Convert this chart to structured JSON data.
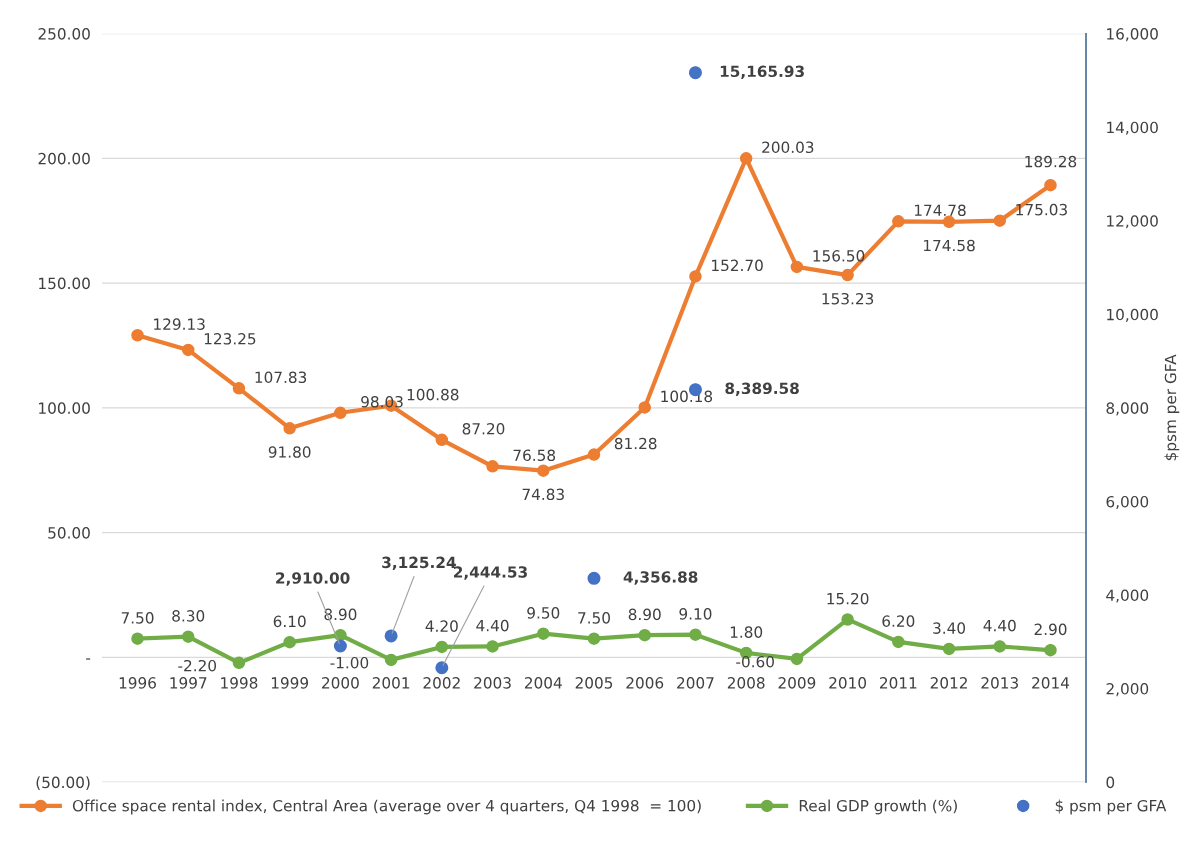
{
  "chart_data": {
    "type": "line",
    "categories": [
      "1996",
      "1997",
      "1998",
      "1999",
      "2000",
      "2001",
      "2002",
      "2003",
      "2004",
      "2005",
      "2006",
      "2007",
      "2008",
      "2009",
      "2010",
      "2011",
      "2012",
      "2013",
      "2014"
    ],
    "series": [
      {
        "name": "Office space rental index, Central Area (average over 4 quarters, Q4 1998  = 100)",
        "color": "#ed7d31",
        "values": [
          129.13,
          123.25,
          107.83,
          91.8,
          98.03,
          100.88,
          87.2,
          76.58,
          74.83,
          81.28,
          100.18,
          152.7,
          200.03,
          156.5,
          153.23,
          174.78,
          174.58,
          175.03,
          189.28
        ],
        "value_labels": [
          "129.13",
          "123.25",
          "107.83",
          "91.80",
          "98.03",
          "100.88",
          "87.20",
          "76.58",
          "74.83",
          "81.28",
          "100.18",
          "152.70",
          "200.03",
          "156.50",
          "153.23",
          "174.78",
          "174.58",
          "175.03",
          "189.28"
        ]
      },
      {
        "name": "Real GDP growth (%)",
        "color": "#70ad47",
        "values": [
          7.5,
          8.3,
          -2.2,
          6.1,
          8.9,
          -1.0,
          4.2,
          4.4,
          9.5,
          7.5,
          8.9,
          9.1,
          1.8,
          -0.6,
          15.2,
          6.2,
          3.4,
          4.4,
          2.9
        ],
        "value_labels": [
          "7.50",
          "8.30",
          "-2.20",
          "6.10",
          "8.90",
          "-1.00",
          "4.20",
          "4.40",
          "9.50",
          "7.50",
          "8.90",
          "9.10",
          "1.80",
          "-0.60",
          "15.20",
          "6.20",
          "3.40",
          "4.40",
          "2.90"
        ]
      },
      {
        "name": "$ psm per GFA",
        "type": "scatter",
        "axis": "y2",
        "color": "#4472c4",
        "values": [
          null,
          null,
          null,
          null,
          2910.0,
          3125.24,
          2444.53,
          null,
          null,
          4356.88,
          null,
          15165.93,
          null,
          null,
          null,
          null,
          null,
          null,
          null
        ],
        "value_labels": [
          null,
          null,
          null,
          null,
          "2,910.00",
          "3,125.24",
          "2,444.53",
          null,
          null,
          "4,356.88",
          null,
          "15,165.93",
          null,
          null,
          null,
          null,
          null,
          null,
          null
        ]
      },
      {
        "type": "scatter",
        "axis": "y2",
        "color": "#4472c4",
        "values": [
          null,
          null,
          null,
          null,
          null,
          null,
          null,
          null,
          null,
          null,
          null,
          8389.58,
          null,
          null,
          null,
          null,
          null,
          null,
          null
        ],
        "value_labels": [
          null,
          null,
          null,
          null,
          null,
          null,
          null,
          null,
          null,
          null,
          null,
          "8,389.58",
          null,
          null,
          null,
          null,
          null,
          null,
          null
        ]
      }
    ],
    "ylim": [
      -50,
      250
    ],
    "yticks": [
      {
        "value": -50,
        "label": "(50.00)"
      },
      {
        "value": 0,
        "label": "-"
      },
      {
        "value": 50,
        "label": "50.00"
      },
      {
        "value": 100,
        "label": "100.00"
      },
      {
        "value": 150,
        "label": "150.00"
      },
      {
        "value": 200,
        "label": "200.00"
      },
      {
        "value": 250,
        "label": "250.00"
      }
    ],
    "y2lim": [
      0,
      16000
    ],
    "y2ticks": [
      {
        "value": 0,
        "label": "0"
      },
      {
        "value": 2000,
        "label": "2,000"
      },
      {
        "value": 4000,
        "label": "4,000"
      },
      {
        "value": 6000,
        "label": "6,000"
      },
      {
        "value": 8000,
        "label": "8,000"
      },
      {
        "value": 10000,
        "label": "10,000"
      },
      {
        "value": 12000,
        "label": "12,000"
      },
      {
        "value": 14000,
        "label": "14,000"
      },
      {
        "value": 16000,
        "label": "16,000"
      }
    ],
    "y2label": "$psm per GFA",
    "grid": "y",
    "legend": "bottom",
    "marker": "circle",
    "line_style": "solid"
  }
}
